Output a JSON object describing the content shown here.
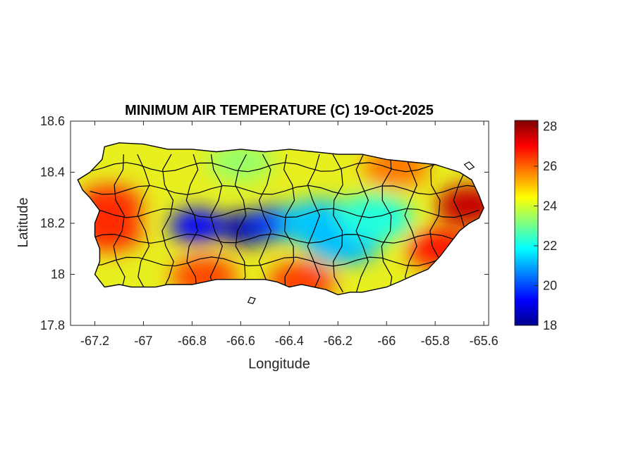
{
  "chart_data": {
    "type": "heatmap",
    "title": "MINIMUM AIR TEMPERATURE (C) 19-Oct-2025",
    "xlabel": "Longitude",
    "ylabel": "Latitude",
    "xlim": [
      -67.3,
      -65.58
    ],
    "ylim": [
      17.8,
      18.6
    ],
    "x_ticks": [
      -67.2,
      -67,
      -66.8,
      -66.6,
      -66.4,
      -66.2,
      -66,
      -65.8,
      -65.6
    ],
    "x_tick_labels": [
      "-67.2",
      "-67",
      "-66.8",
      "-66.6",
      "-66.4",
      "-66.2",
      "-66",
      "-65.8",
      "-65.6"
    ],
    "y_ticks": [
      17.8,
      18,
      18.2,
      18.4,
      18.6
    ],
    "y_tick_labels": [
      "17.8",
      "18",
      "18.2",
      "18.4",
      "18.6"
    ],
    "colorbar": {
      "colormap": "jet",
      "range": [
        18,
        28.3
      ],
      "ticks": [
        18,
        20,
        22,
        24,
        26,
        28
      ],
      "tick_labels": [
        "18",
        "20",
        "22",
        "24",
        "26",
        "28"
      ]
    },
    "grid": false,
    "outline": [
      [
        -67.27,
        18.37
      ],
      [
        -67.22,
        18.4
      ],
      [
        -67.17,
        18.45
      ],
      [
        -67.16,
        18.5
      ],
      [
        -67.1,
        18.515
      ],
      [
        -67.0,
        18.51
      ],
      [
        -66.9,
        18.49
      ],
      [
        -66.8,
        18.49
      ],
      [
        -66.7,
        18.48
      ],
      [
        -66.6,
        18.49
      ],
      [
        -66.5,
        18.48
      ],
      [
        -66.4,
        18.49
      ],
      [
        -66.3,
        18.48
      ],
      [
        -66.2,
        18.47
      ],
      [
        -66.1,
        18.47
      ],
      [
        -66.0,
        18.45
      ],
      [
        -65.9,
        18.44
      ],
      [
        -65.8,
        18.43
      ],
      [
        -65.7,
        18.4
      ],
      [
        -65.65,
        18.37
      ],
      [
        -65.62,
        18.31
      ],
      [
        -65.6,
        18.26
      ],
      [
        -65.62,
        18.22
      ],
      [
        -65.66,
        18.2
      ],
      [
        -65.7,
        18.17
      ],
      [
        -65.74,
        18.12
      ],
      [
        -65.78,
        18.07
      ],
      [
        -65.83,
        18.02
      ],
      [
        -65.88,
        18.0
      ],
      [
        -65.95,
        17.97
      ],
      [
        -66.0,
        17.95
      ],
      [
        -66.05,
        17.94
      ],
      [
        -66.1,
        17.93
      ],
      [
        -66.15,
        17.93
      ],
      [
        -66.2,
        17.92
      ],
      [
        -66.25,
        17.94
      ],
      [
        -66.3,
        17.95
      ],
      [
        -66.35,
        17.96
      ],
      [
        -66.4,
        17.95
      ],
      [
        -66.45,
        17.97
      ],
      [
        -66.5,
        17.98
      ],
      [
        -66.6,
        17.98
      ],
      [
        -66.7,
        17.98
      ],
      [
        -66.75,
        17.97
      ],
      [
        -66.8,
        17.96
      ],
      [
        -66.9,
        17.96
      ],
      [
        -66.95,
        17.95
      ],
      [
        -67.0,
        17.95
      ],
      [
        -67.05,
        17.95
      ],
      [
        -67.1,
        17.96
      ],
      [
        -67.16,
        17.95
      ],
      [
        -67.2,
        18.0
      ],
      [
        -67.18,
        18.05
      ],
      [
        -67.18,
        18.1
      ],
      [
        -67.2,
        18.15
      ],
      [
        -67.2,
        18.2
      ],
      [
        -67.18,
        18.25
      ],
      [
        -67.22,
        18.3
      ],
      [
        -67.25,
        18.33
      ],
      [
        -67.27,
        18.37
      ]
    ],
    "islands": [
      [
        [
          -66.57,
          17.89
        ],
        [
          -66.56,
          17.91
        ],
        [
          -66.54,
          17.905
        ],
        [
          -66.55,
          17.885
        ]
      ],
      [
        [
          -65.68,
          18.43
        ],
        [
          -65.66,
          18.44
        ],
        [
          -65.64,
          18.42
        ],
        [
          -65.66,
          18.41
        ]
      ]
    ],
    "temperature_features": [
      {
        "lon": -66.78,
        "lat": 18.19,
        "value": 19.3
      },
      {
        "lon": -66.57,
        "lat": 18.18,
        "value": 18.4
      },
      {
        "lon": -66.45,
        "lat": 18.2,
        "value": 19.8
      },
      {
        "lon": -66.28,
        "lat": 18.2,
        "value": 21.3
      },
      {
        "lon": -66.18,
        "lat": 18.13,
        "value": 21.2
      },
      {
        "lon": -66.05,
        "lat": 18.22,
        "value": 22.2
      },
      {
        "lon": -67.14,
        "lat": 18.27,
        "value": 26.6
      },
      {
        "lon": -67.14,
        "lat": 18.17,
        "value": 26.6
      },
      {
        "lon": -65.66,
        "lat": 18.27,
        "value": 27.6
      },
      {
        "lon": -65.78,
        "lat": 18.1,
        "value": 26.8
      },
      {
        "lon": -66.35,
        "lat": 17.97,
        "value": 26.4
      },
      {
        "lon": -66.75,
        "lat": 17.99,
        "value": 26.3
      },
      {
        "lon": -65.96,
        "lat": 18.42,
        "value": 25.8
      },
      {
        "lon": -66.6,
        "lat": 18.44,
        "value": 23.4
      }
    ]
  }
}
